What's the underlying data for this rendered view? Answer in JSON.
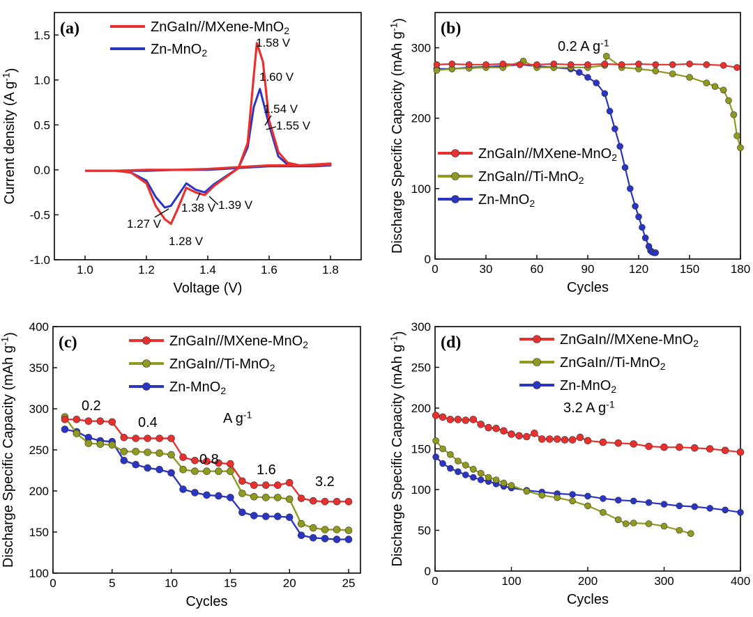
{
  "colors": {
    "mxene": "#e8312f",
    "ti": "#8f9a1e",
    "zn": "#2a35c4"
  },
  "chart_data": [
    {
      "id": "a",
      "type": "line",
      "panel_label": "(a)",
      "xlabel": "Voltage (V)",
      "ylabel": "Current density (A g⁻¹)",
      "xlim": [
        0.9,
        1.9
      ],
      "ylim": [
        -1.0,
        1.75
      ],
      "xticks": [
        1.0,
        1.2,
        1.4,
        1.6,
        1.8
      ],
      "xtick_labels": [
        "1.0",
        "1.2",
        "1.4",
        "1.6",
        "1.8"
      ],
      "yticks": [
        -1.0,
        -0.5,
        0.0,
        0.5,
        1.0,
        1.5
      ],
      "ytick_labels": [
        "-1.0",
        "-0.5",
        "0.0",
        "0.5",
        "1.0",
        "1.5"
      ],
      "legend": {
        "position": "top-left"
      },
      "series": [
        {
          "name": "ZnGaIn//MXene-MnO₂",
          "color": "#e8312f",
          "x": [
            1.0,
            1.1,
            1.15,
            1.2,
            1.23,
            1.26,
            1.28,
            1.3,
            1.33,
            1.36,
            1.39,
            1.42,
            1.46,
            1.5,
            1.53,
            1.55,
            1.56,
            1.58,
            1.6,
            1.63,
            1.66,
            1.7,
            1.75,
            1.8,
            1.8,
            1.75,
            1.7,
            1.65,
            1.6,
            1.55,
            1.5,
            1.45,
            1.4,
            1.3,
            1.2,
            1.1,
            1.0
          ],
          "y": [
            -0.01,
            -0.01,
            -0.03,
            -0.15,
            -0.4,
            -0.55,
            -0.6,
            -0.45,
            -0.2,
            -0.25,
            -0.28,
            -0.18,
            -0.08,
            0.02,
            0.3,
            1.05,
            1.41,
            1.2,
            0.55,
            0.2,
            0.08,
            0.05,
            0.05,
            0.06,
            0.07,
            0.06,
            0.05,
            0.05,
            0.05,
            0.04,
            0.03,
            0.02,
            0.01,
            0.0,
            0.0,
            -0.01,
            -0.01
          ]
        },
        {
          "name": "Zn-MnO₂",
          "color": "#2a35c4",
          "x": [
            1.0,
            1.1,
            1.15,
            1.2,
            1.23,
            1.26,
            1.28,
            1.3,
            1.33,
            1.36,
            1.39,
            1.42,
            1.46,
            1.5,
            1.53,
            1.55,
            1.57,
            1.6,
            1.63,
            1.66,
            1.7,
            1.75,
            1.8,
            1.8,
            1.75,
            1.7,
            1.65,
            1.6,
            1.55,
            1.5,
            1.45,
            1.4,
            1.3,
            1.2,
            1.1,
            1.0
          ],
          "y": [
            -0.01,
            -0.01,
            -0.03,
            -0.12,
            -0.3,
            -0.42,
            -0.4,
            -0.3,
            -0.15,
            -0.22,
            -0.25,
            -0.16,
            -0.07,
            0.02,
            0.25,
            0.7,
            0.9,
            0.5,
            0.15,
            0.06,
            0.04,
            0.04,
            0.05,
            0.06,
            0.05,
            0.04,
            0.04,
            0.04,
            0.03,
            0.02,
            0.01,
            0.0,
            0.0,
            -0.01,
            -0.01,
            -0.01
          ]
        }
      ],
      "annotations": [
        {
          "text": "1.58 V",
          "color": "#e8312f"
        },
        {
          "text": "1.60 V",
          "color": "#2a35c4"
        },
        {
          "text": "1.54 V",
          "color": "#e8312f"
        },
        {
          "text": "1.55 V",
          "color": "#2a35c4"
        },
        {
          "text": "1.27 V",
          "color": "#2a35c4"
        },
        {
          "text": "1.28 V",
          "color": "#e8312f"
        },
        {
          "text": "1.38 V",
          "color": "#2a35c4"
        },
        {
          "text": "1.39 V",
          "color": "#e8312f"
        }
      ]
    },
    {
      "id": "b",
      "type": "line",
      "panel_label": "(b)",
      "xlabel": "Cycles",
      "ylabel": "Discharge Specific Capacity (mAh g⁻¹)",
      "xlim": [
        0,
        180
      ],
      "ylim": [
        0,
        350
      ],
      "xticks": [
        0,
        30,
        60,
        90,
        120,
        150,
        180
      ],
      "xtick_labels": [
        "0",
        "30",
        "60",
        "90",
        "120",
        "150",
        "180"
      ],
      "yticks": [
        0,
        100,
        200,
        300
      ],
      "ytick_labels": [
        "0",
        "100",
        "200",
        "300"
      ],
      "legend": {
        "position": "center-left"
      },
      "annotation": "0.2 A g⁻¹",
      "series": [
        {
          "name": "ZnGaIn//MXene-MnO₂",
          "color": "#e8312f",
          "x": [
            1,
            10,
            20,
            30,
            40,
            50,
            60,
            70,
            80,
            90,
            100,
            110,
            120,
            130,
            140,
            150,
            160,
            170,
            178
          ],
          "y": [
            276,
            277,
            276,
            276,
            277,
            276,
            276,
            277,
            276,
            276,
            277,
            276,
            277,
            276,
            276,
            277,
            276,
            275,
            272
          ]
        },
        {
          "name": "ZnGaIn//Ti-MnO₂",
          "color": "#8f9a1e",
          "x": [
            1,
            10,
            20,
            30,
            40,
            52,
            60,
            70,
            80,
            90,
            100,
            101,
            110,
            120,
            130,
            140,
            150,
            160,
            165,
            170,
            173,
            176,
            178,
            180
          ],
          "y": [
            268,
            270,
            271,
            272,
            272,
            281,
            272,
            272,
            272,
            272,
            275,
            288,
            272,
            270,
            267,
            263,
            258,
            250,
            245,
            240,
            225,
            205,
            175,
            158
          ]
        },
        {
          "name": "Zn-MnO₂",
          "color": "#2a35c4",
          "x": [
            1,
            10,
            20,
            30,
            40,
            50,
            60,
            70,
            80,
            85,
            90,
            95,
            100,
            103,
            106,
            109,
            112,
            115,
            118,
            120,
            122,
            124,
            126,
            127,
            128,
            129,
            130
          ],
          "y": [
            270,
            270,
            272,
            273,
            274,
            276,
            274,
            272,
            270,
            265,
            258,
            250,
            235,
            210,
            185,
            160,
            130,
            100,
            75,
            60,
            45,
            30,
            18,
            12,
            10,
            9,
            9
          ]
        }
      ]
    },
    {
      "id": "c",
      "type": "line",
      "panel_label": "(c)",
      "xlabel": "Cycles",
      "ylabel": "Discharge Specific Capacity (mAh g⁻¹)",
      "xlim": [
        0,
        26
      ],
      "ylim": [
        100,
        400
      ],
      "xticks": [
        0,
        5,
        10,
        15,
        20,
        25
      ],
      "xtick_labels": [
        "0",
        "5",
        "10",
        "15",
        "20",
        "25"
      ],
      "yticks": [
        100,
        150,
        200,
        250,
        300,
        350,
        400
      ],
      "ytick_labels": [
        "100",
        "150",
        "200",
        "250",
        "300",
        "350",
        "400"
      ],
      "legend": {
        "position": "top-right"
      },
      "rate_labels": [
        "0.2",
        "0.4",
        "0.8",
        "1.6",
        "3.2"
      ],
      "rate_unit": "A g⁻¹",
      "series": [
        {
          "name": "ZnGaIn//MXene-MnO₂",
          "color": "#e8312f",
          "x": [
            1,
            2,
            3,
            4,
            5,
            6,
            7,
            8,
            9,
            10,
            11,
            12,
            13,
            14,
            15,
            16,
            17,
            18,
            19,
            20,
            21,
            22,
            23,
            24,
            25
          ],
          "y": [
            287,
            287,
            285,
            285,
            284,
            265,
            264,
            264,
            264,
            264,
            241,
            237,
            236,
            234,
            233,
            212,
            207,
            207,
            207,
            210,
            191,
            188,
            187,
            187,
            187
          ]
        },
        {
          "name": "ZnGaIn//Ti-MnO₂",
          "color": "#8f9a1e",
          "x": [
            1,
            2,
            3,
            4,
            5,
            6,
            7,
            8,
            9,
            10,
            11,
            12,
            13,
            14,
            15,
            16,
            17,
            18,
            19,
            20,
            21,
            22,
            23,
            24,
            25
          ],
          "y": [
            290,
            270,
            258,
            257,
            256,
            248,
            248,
            247,
            246,
            244,
            226,
            224,
            224,
            224,
            224,
            197,
            193,
            192,
            192,
            190,
            160,
            155,
            153,
            153,
            152
          ]
        },
        {
          "name": "Zn-MnO₂",
          "color": "#2a35c4",
          "x": [
            1,
            2,
            3,
            4,
            5,
            6,
            7,
            8,
            9,
            10,
            11,
            12,
            13,
            14,
            15,
            16,
            17,
            18,
            19,
            20,
            21,
            22,
            23,
            24,
            25
          ],
          "y": [
            275,
            272,
            265,
            261,
            260,
            237,
            232,
            228,
            226,
            222,
            202,
            198,
            195,
            194,
            192,
            174,
            170,
            169,
            169,
            168,
            146,
            143,
            142,
            141,
            141
          ]
        }
      ]
    },
    {
      "id": "d",
      "type": "line",
      "panel_label": "(d)",
      "xlabel": "Cycles",
      "ylabel": "Discharge Specific Capacity (mAh g⁻¹)",
      "xlim": [
        0,
        400
      ],
      "ylim": [
        0,
        300
      ],
      "xticks": [
        0,
        100,
        200,
        300,
        400
      ],
      "xtick_labels": [
        "0",
        "100",
        "200",
        "300",
        "400"
      ],
      "yticks": [
        0,
        50,
        100,
        150,
        200,
        250,
        300
      ],
      "ytick_labels": [
        "0",
        "50",
        "100",
        "150",
        "200",
        "250",
        "300"
      ],
      "legend": {
        "position": "top-right"
      },
      "annotation": "3.2 A g⁻¹",
      "series": [
        {
          "name": "ZnGaIn//MXene-MnO₂",
          "color": "#e8312f",
          "x": [
            1,
            10,
            20,
            30,
            40,
            50,
            60,
            70,
            80,
            90,
            100,
            110,
            120,
            130,
            140,
            150,
            160,
            170,
            180,
            190,
            200,
            220,
            240,
            260,
            280,
            300,
            320,
            340,
            360,
            380,
            400
          ],
          "y": [
            191,
            189,
            186,
            186,
            185,
            186,
            180,
            176,
            175,
            172,
            168,
            166,
            165,
            169,
            162,
            162,
            162,
            161,
            161,
            164,
            160,
            158,
            157,
            156,
            153,
            152,
            152,
            151,
            150,
            148,
            146
          ]
        },
        {
          "name": "ZnGaIn//Ti-MnO₂",
          "color": "#8f9a1e",
          "x": [
            1,
            10,
            20,
            30,
            40,
            50,
            60,
            70,
            80,
            90,
            100,
            120,
            140,
            160,
            180,
            200,
            220,
            240,
            250,
            260,
            280,
            300,
            320,
            335
          ],
          "y": [
            160,
            150,
            143,
            135,
            130,
            125,
            120,
            115,
            112,
            108,
            105,
            98,
            93,
            90,
            86,
            80,
            72,
            63,
            58,
            59,
            58,
            55,
            50,
            46
          ]
        },
        {
          "name": "Zn-MnO₂",
          "color": "#2a35c4",
          "x": [
            1,
            10,
            20,
            30,
            40,
            50,
            60,
            70,
            80,
            90,
            100,
            120,
            140,
            160,
            180,
            200,
            220,
            240,
            260,
            280,
            300,
            320,
            340,
            360,
            380,
            400
          ],
          "y": [
            140,
            132,
            126,
            122,
            118,
            115,
            112,
            110,
            107,
            104,
            102,
            99,
            97,
            95,
            94,
            92,
            89,
            87,
            86,
            84,
            82,
            80,
            79,
            77,
            75,
            72
          ]
        }
      ]
    }
  ]
}
